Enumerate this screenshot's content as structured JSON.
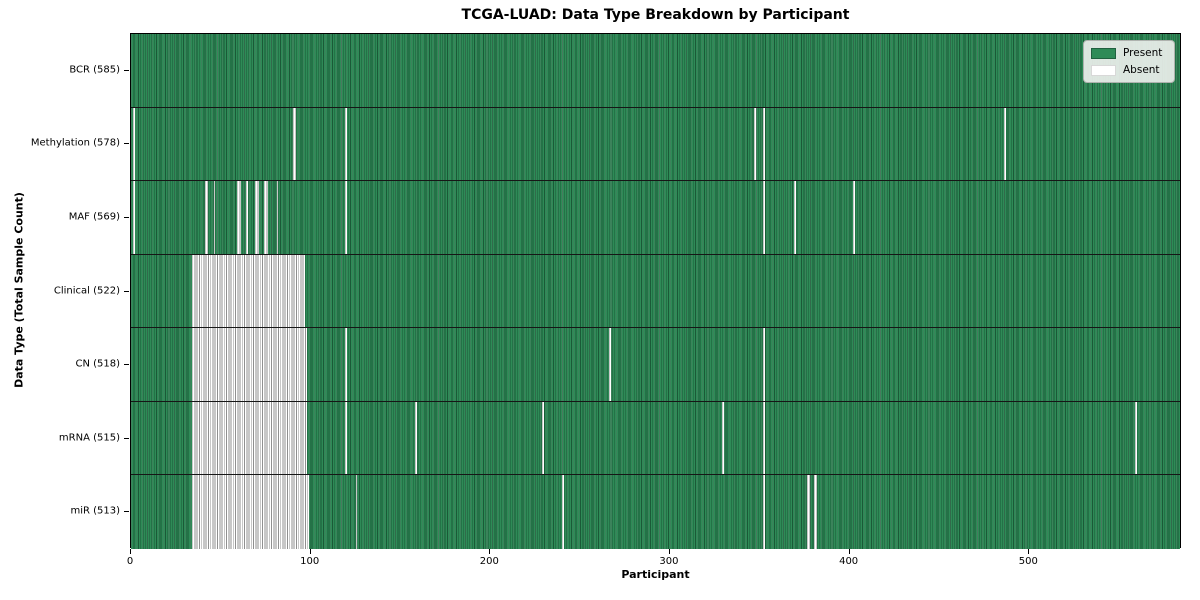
{
  "window": {
    "background": "#ffffff"
  },
  "chart_data": {
    "type": "heatmap",
    "title": "TCGA-LUAD: Data Type Breakdown by Participant",
    "xlabel": "Participant",
    "ylabel": "Data Type (Total Sample Count)",
    "x_ticks": [
      0,
      100,
      200,
      300,
      400,
      500
    ],
    "x_range": [
      0,
      585
    ],
    "n_participants": 585,
    "grid": false,
    "legend": {
      "position": "upper right",
      "entries": [
        "Present",
        "Absent"
      ]
    },
    "colors": {
      "present": "#2e8b57",
      "absent": "#ffffff",
      "cell_edge_on_green": "#1e5e3e",
      "cell_edge_on_white": "#8f8f8f",
      "axis": "#000000"
    },
    "rows": [
      {
        "data_type": "BCR",
        "label": "BCR (585)",
        "present_count": 585,
        "absent_ranges": []
      },
      {
        "data_type": "Methylation",
        "label": "Methylation (578)",
        "present_count": 578,
        "absent_ranges": [
          [
            1,
            1
          ],
          [
            90,
            91
          ],
          [
            119,
            119
          ],
          [
            347,
            347
          ],
          [
            352,
            352
          ],
          [
            486,
            486
          ]
        ]
      },
      {
        "data_type": "MAF",
        "label": "MAF (569)",
        "present_count": 569,
        "absent_ranges": [
          [
            1,
            1
          ],
          [
            41,
            42
          ],
          [
            46,
            46
          ],
          [
            59,
            60
          ],
          [
            64,
            64
          ],
          [
            69,
            70
          ],
          [
            74,
            75
          ],
          [
            81,
            81
          ],
          [
            119,
            119
          ],
          [
            352,
            352
          ],
          [
            369,
            369
          ],
          [
            402,
            402
          ]
        ]
      },
      {
        "data_type": "Clinical",
        "label": "Clinical (522)",
        "present_count": 522,
        "absent_ranges": [
          [
            34,
            96
          ]
        ]
      },
      {
        "data_type": "CN",
        "label": "CN (518)",
        "present_count": 518,
        "absent_ranges": [
          [
            34,
            97
          ],
          [
            119,
            119
          ],
          [
            266,
            266
          ],
          [
            352,
            352
          ]
        ]
      },
      {
        "data_type": "mRNA",
        "label": "mRNA (515)",
        "present_count": 515,
        "absent_ranges": [
          [
            34,
            97
          ],
          [
            119,
            119
          ],
          [
            158,
            158
          ],
          [
            229,
            229
          ],
          [
            329,
            329
          ],
          [
            352,
            352
          ],
          [
            559,
            559
          ]
        ]
      },
      {
        "data_type": "miR",
        "label": "miR (513)",
        "present_count": 513,
        "absent_ranges": [
          [
            34,
            98
          ],
          [
            125,
            125
          ],
          [
            240,
            240
          ],
          [
            352,
            352
          ],
          [
            376,
            377
          ],
          [
            380,
            381
          ]
        ]
      }
    ]
  }
}
